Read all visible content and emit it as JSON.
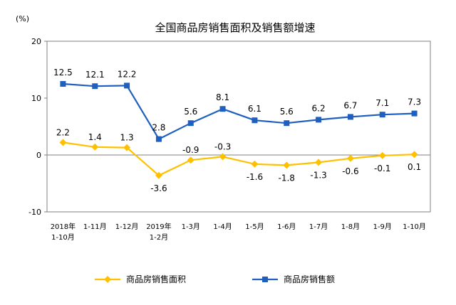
{
  "chart_data": {
    "type": "line",
    "title": "全国商品房销售面积及销售额增速",
    "unit_label": "(%)",
    "ylim": [
      -10,
      20
    ],
    "yticks": [
      "20",
      "10",
      "0",
      "-10"
    ],
    "grid": false,
    "legend_position": "bottom",
    "categories": [
      {
        "line1": "2018年",
        "line2": "1-10月"
      },
      {
        "line1": "1-11月",
        "line2": ""
      },
      {
        "line1": "1-12月",
        "line2": ""
      },
      {
        "line1": "2019年",
        "line2": "1-2月"
      },
      {
        "line1": "1-3月",
        "line2": ""
      },
      {
        "line1": "1-4月",
        "line2": ""
      },
      {
        "line1": "1-5月",
        "line2": ""
      },
      {
        "line1": "1-6月",
        "line2": ""
      },
      {
        "line1": "1-7月",
        "line2": ""
      },
      {
        "line1": "1-8月",
        "line2": ""
      },
      {
        "line1": "1-9月",
        "line2": ""
      },
      {
        "line1": "1-10月",
        "line2": ""
      }
    ],
    "series": [
      {
        "name": "商品房销售面积",
        "color": "#FFC000",
        "marker": "diamond",
        "values": [
          2.2,
          1.4,
          1.3,
          -3.6,
          -0.9,
          -0.3,
          -1.6,
          -1.8,
          -1.3,
          -0.6,
          -0.1,
          0.1
        ],
        "labels": [
          "2.2",
          "1.4",
          "1.3",
          "-3.6",
          "-0.9",
          "-0.3",
          "-1.6",
          "-1.8",
          "-1.3",
          "-0.6",
          "-0.1",
          "0.1"
        ]
      },
      {
        "name": "商品房销售额",
        "color": "#1F5FBF",
        "marker": "square",
        "values": [
          12.5,
          12.1,
          12.2,
          2.8,
          5.6,
          8.1,
          6.1,
          5.6,
          6.2,
          6.7,
          7.1,
          7.3
        ],
        "labels": [
          "12.5",
          "12.1",
          "12.2",
          "2.8",
          "5.6",
          "8.1",
          "6.1",
          "5.6",
          "6.2",
          "6.7",
          "7.1",
          "7.3"
        ]
      }
    ]
  }
}
